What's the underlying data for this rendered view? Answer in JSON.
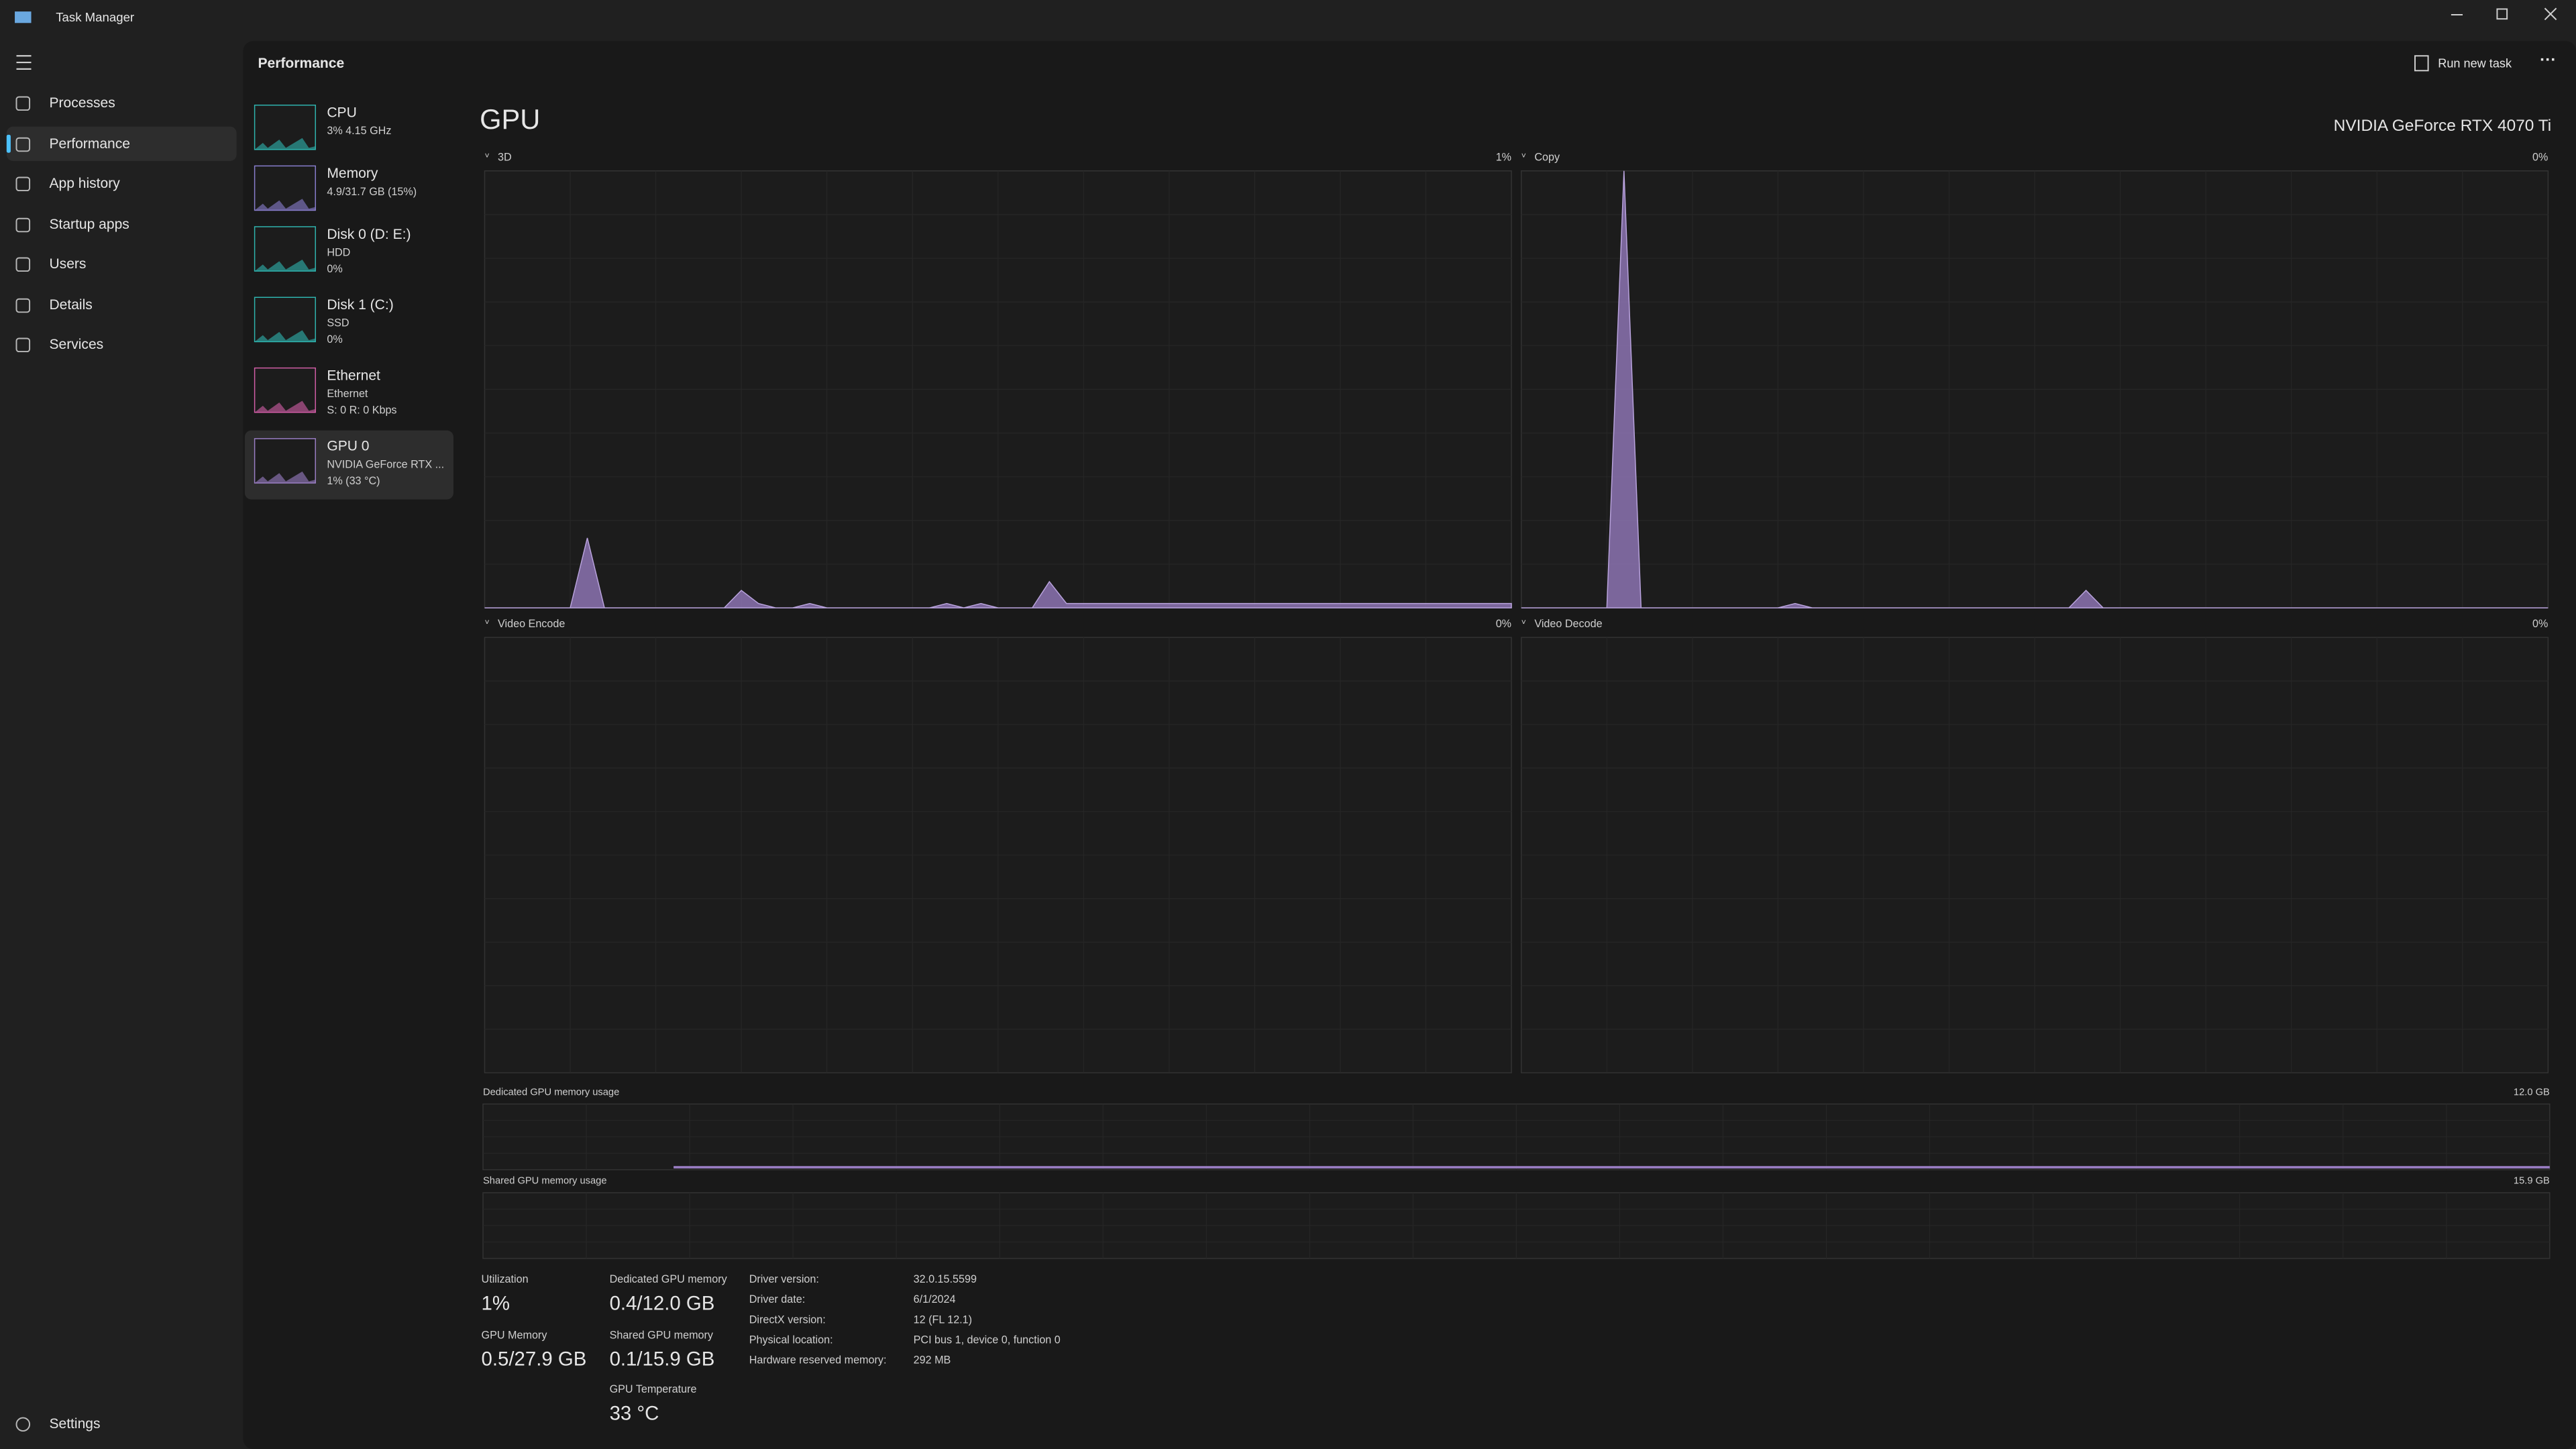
{
  "window": {
    "title": "Task Manager"
  },
  "nav": {
    "items": [
      "Processes",
      "Performance",
      "App history",
      "Startup apps",
      "Users",
      "Details",
      "Services"
    ],
    "settings": "Settings"
  },
  "header": {
    "title": "Performance",
    "run_new_task": "Run new task"
  },
  "devices": [
    {
      "name": "CPU",
      "lines": [
        "3% 4.15 GHz"
      ]
    },
    {
      "name": "Memory",
      "lines": [
        "4.9/31.7 GB (15%)"
      ]
    },
    {
      "name": "Disk 0 (D: E:)",
      "lines": [
        "HDD",
        "0%"
      ]
    },
    {
      "name": "Disk 1 (C:)",
      "lines": [
        "SSD",
        "0%"
      ]
    },
    {
      "name": "Ethernet",
      "lines": [
        "Ethernet",
        "S: 0 R: 0 Kbps"
      ]
    },
    {
      "name": "GPU 0",
      "lines": [
        "NVIDIA GeForce RTX ...",
        "1% (33 °C)"
      ]
    }
  ],
  "panel": {
    "title": "GPU",
    "device": "NVIDIA GeForce RTX 4070 Ti",
    "ylim": [
      0,
      100
    ],
    "color": "#9b7fc6",
    "graphs": [
      {
        "label": "3D",
        "value_label": "1%",
        "values": [
          0,
          0,
          0,
          0,
          0,
          0,
          16,
          0,
          0,
          0,
          0,
          0,
          0,
          0,
          0,
          4,
          1,
          0,
          0,
          1,
          0,
          0,
          0,
          0,
          0,
          0,
          0,
          1,
          0,
          1,
          0,
          0,
          0,
          6,
          1,
          1,
          1,
          1,
          1,
          1,
          1,
          1,
          1,
          1,
          1,
          1,
          1,
          1,
          1,
          1,
          1,
          1,
          1,
          1,
          1,
          1,
          1,
          1,
          1,
          1,
          1
        ]
      },
      {
        "label": "Copy",
        "value_label": "0%",
        "values": [
          0,
          0,
          0,
          0,
          0,
          0,
          100,
          0,
          0,
          0,
          0,
          0,
          0,
          0,
          0,
          0,
          1,
          0,
          0,
          0,
          0,
          0,
          0,
          0,
          0,
          0,
          0,
          0,
          0,
          0,
          0,
          0,
          0,
          4,
          0,
          0,
          0,
          0,
          0,
          0,
          0,
          0,
          0,
          0,
          0,
          0,
          0,
          0,
          0,
          0,
          0,
          0,
          0,
          0,
          0,
          0,
          0,
          0,
          0,
          0,
          0
        ]
      },
      {
        "label": "Video Encode",
        "value_label": "0%"
      },
      {
        "label": "Video Decode",
        "value_label": "0%"
      }
    ],
    "memory_graphs": [
      {
        "label": "Dedicated GPU memory usage",
        "max_label": "12.0 GB"
      },
      {
        "label": "Shared GPU memory usage",
        "max_label": "15.9 GB"
      }
    ],
    "stats": [
      {
        "label": "Utilization",
        "value": "1%"
      },
      {
        "label": "GPU Memory",
        "value": "0.5/27.9 GB"
      },
      {
        "label": "Dedicated GPU memory",
        "value": "0.4/12.0 GB"
      },
      {
        "label": "Shared GPU memory",
        "value": "0.1/15.9 GB"
      },
      {
        "label": "GPU Temperature",
        "value": "33 °C"
      }
    ],
    "details": [
      [
        "Driver version:",
        "32.0.15.5599"
      ],
      [
        "Driver date:",
        "6/1/2024"
      ],
      [
        "DirectX version:",
        "12 (FL 12.1)"
      ],
      [
        "Physical location:",
        "PCI bus 1, device 0, function 0"
      ],
      [
        "Hardware reserved memory:",
        "292 MB"
      ]
    ]
  }
}
